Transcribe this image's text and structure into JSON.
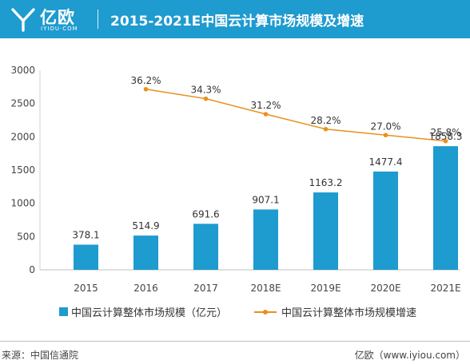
{
  "header": {
    "logo_cn": "亿欧",
    "logo_en": "IYIOU·COM",
    "title": "2015-2021E中国云计算市场规模及增速"
  },
  "colors": {
    "accent": "#1e9bcf",
    "bar": "#1e9bcf",
    "line": "#e8901c"
  },
  "chart_data": {
    "type": "bar",
    "categories": [
      "2015",
      "2016",
      "2017",
      "2018E",
      "2019E",
      "2020E",
      "2021E"
    ],
    "series": [
      {
        "name": "中国云计算整体市场规模（亿元）",
        "type": "bar",
        "values": [
          378.1,
          514.9,
          691.6,
          907.1,
          1163.2,
          1477.4,
          1858.3
        ],
        "labels": [
          "378.1",
          "514.9",
          "691.6",
          "907.1",
          "1163.2",
          "1477.4",
          "1858.3"
        ]
      },
      {
        "name": "中国云计算整体市场规模增速",
        "type": "line",
        "values": [
          null,
          36.2,
          34.3,
          31.2,
          28.2,
          27.0,
          25.8
        ],
        "labels": [
          "",
          "36.2%",
          "34.3%",
          "31.2%",
          "28.2%",
          "27.0%",
          "25.8%"
        ]
      }
    ],
    "y_ticks": [
      "0",
      "500",
      "1000",
      "1500",
      "2000",
      "2500",
      "3000"
    ],
    "ylim": [
      0,
      3000
    ],
    "line_ylim": [
      0,
      40
    ],
    "grid": false,
    "legend_position": "bottom"
  },
  "footer": {
    "source": "来源：中国信通院",
    "credit": "亿欧（www.iyiou.com）"
  }
}
